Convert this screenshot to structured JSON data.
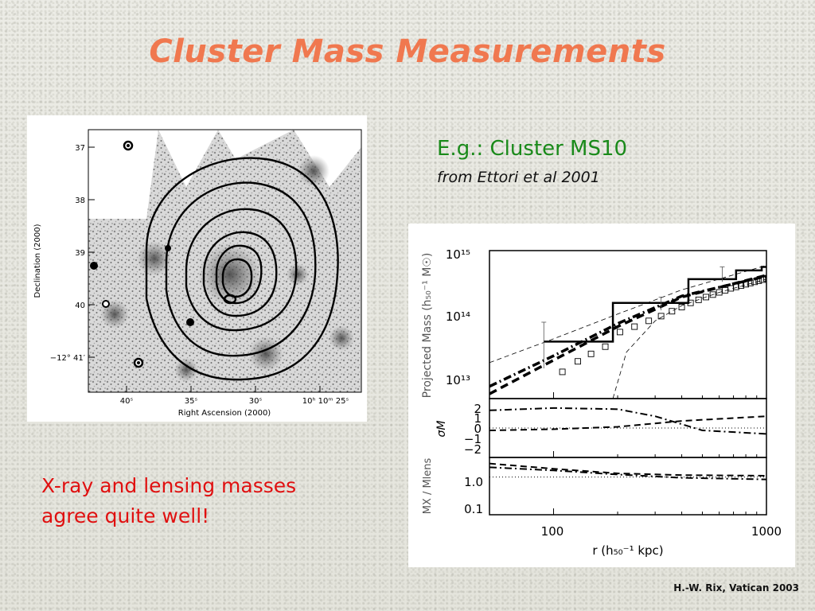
{
  "slide": {
    "title": "Cluster Mass Measurements",
    "caption_title": "E.g.: Cluster MS10",
    "caption_source": "from Ettori et al 2001",
    "summary_line1": "X-ray and lensing masses",
    "summary_line2": "agree quite well!",
    "credit": "H.-W. Rix, Vatican 2003"
  },
  "sky_map": {
    "ylabel": "Declination (2000)",
    "xlabel": "Right Ascension (2000)",
    "y_ticks": [
      "37",
      "38",
      "39",
      "40",
      "−12° 41′"
    ],
    "x_ticks": [
      "40ˢ",
      "35ˢ",
      "30ˢ",
      "10ʰ 10ᵐ 25ˢ"
    ],
    "contour_count": 7
  },
  "chart_data": {
    "type": "line",
    "x_scale": "log",
    "xlabel": "r (h₅₀⁻¹ kpc)",
    "x_ticks": [
      "100",
      "1000"
    ],
    "xlim": [
      50,
      1000
    ],
    "panels": [
      {
        "name": "mass",
        "ylabel": "Projected Mass (h₅₀⁻¹ M☉)",
        "y_scale": "log",
        "y_ticks": [
          "10¹³",
          "10¹⁴",
          "10¹⁵"
        ],
        "ylim": [
          5000000000000.0,
          1500000000000000.0
        ],
        "series": [
          {
            "style": "step-solid",
            "x": [
              90,
              190,
              430,
              720,
              950,
              1000
            ],
            "y": [
              45000000000000.0,
              200000000000000.0,
              500000000000000.0,
              700000000000000.0,
              800000000000000.0,
              800000000000000.0
            ]
          },
          {
            "style": "dashed-thick",
            "x": [
              50,
              100,
              200,
              400,
              1000
            ],
            "y": [
              6000000000000.0,
              22000000000000.0,
              80000000000000.0,
              250000000000000.0,
              580000000000000.0
            ]
          },
          {
            "style": "dashdot-thick",
            "x": [
              50,
              100,
              200,
              400,
              1000
            ],
            "y": [
              8000000000000.0,
              26000000000000.0,
              90000000000000.0,
              260000000000000.0,
              560000000000000.0
            ]
          },
          {
            "style": "dashed-thin",
            "x": [
              50,
              100,
              200,
              400,
              1000
            ],
            "y": [
              20000000000000.0,
              50000000000000.0,
              130000000000000.0,
              330000000000000.0,
              850000000000000.0
            ]
          },
          {
            "style": "dashed-thin",
            "x": [
              190,
              220,
              300,
              400,
              600,
              1000
            ],
            "y": [
              5000000000000.0,
              30000000000000.0,
              100000000000000.0,
              180000000000000.0,
              300000000000000.0,
              500000000000000.0
            ]
          },
          {
            "style": "markers",
            "x": [
              110,
              130,
              150,
              175,
              205,
              240,
              280,
              320,
              360,
              400,
              440,
              480,
              520,
              560,
              600,
              640,
              680,
              720,
              760,
              800,
              840,
              880,
              920,
              960,
              1000
            ],
            "y": [
              14000000000000.0,
              21000000000000.0,
              28000000000000.0,
              37000000000000.0,
              65000000000000.0,
              80000000000000.0,
              100000000000000.0,
              120000000000000.0,
              145000000000000.0,
              170000000000000.0,
              200000000000000.0,
              225000000000000.0,
              250000000000000.0,
              275000000000000.0,
              300000000000000.0,
              325000000000000.0,
              350000000000000.0,
              370000000000000.0,
              390000000000000.0,
              410000000000000.0,
              430000000000000.0,
              450000000000000.0,
              470000000000000.0,
              490000000000000.0,
              510000000000000.0
            ]
          }
        ],
        "error_bars": [
          {
            "x": 90,
            "lo": 16000000000000.0,
            "hi": 95000000000000.0
          },
          {
            "x": 320,
            "lo": 150000000000000.0,
            "hi": 250000000000000.0
          },
          {
            "x": 620,
            "lo": 450000000000000.0,
            "hi": 800000000000000.0
          }
        ]
      },
      {
        "name": "sigma",
        "ylabel": "σM",
        "y_scale": "linear",
        "y_ticks": [
          "2",
          "1",
          "0",
          "−1",
          "−2"
        ],
        "ylim": [
          -2.5,
          2.5
        ],
        "series": [
          {
            "style": "dashdot",
            "x": [
              50,
              100,
              200,
              300,
              500,
              1000
            ],
            "y": [
              1.5,
              1.7,
              1.6,
              1.0,
              -0.2,
              -0.5
            ]
          },
          {
            "style": "dashed",
            "x": [
              50,
              100,
              200,
              400,
              1000
            ],
            "y": [
              -0.2,
              -0.1,
              0.1,
              0.6,
              1.0
            ]
          },
          {
            "style": "dotted",
            "x": [
              50,
              1000
            ],
            "y": [
              0,
              0
            ]
          }
        ]
      },
      {
        "name": "ratio",
        "ylabel": "MX / Mlens",
        "y_scale": "log",
        "y_ticks": [
          "1.0",
          "0.1"
        ],
        "ylim": [
          0.07,
          4
        ],
        "series": [
          {
            "style": "dashdot",
            "x": [
              50,
              100,
              200,
              400,
              1000
            ],
            "y": [
              2.0,
              1.6,
              1.2,
              0.95,
              0.85
            ]
          },
          {
            "style": "dashed",
            "x": [
              50,
              100,
              200,
              400,
              1000
            ],
            "y": [
              2.6,
              1.8,
              1.3,
              1.15,
              1.1
            ]
          },
          {
            "style": "dotted",
            "x": [
              50,
              1000
            ],
            "y": [
              1.0,
              1.0
            ]
          }
        ]
      }
    ]
  }
}
